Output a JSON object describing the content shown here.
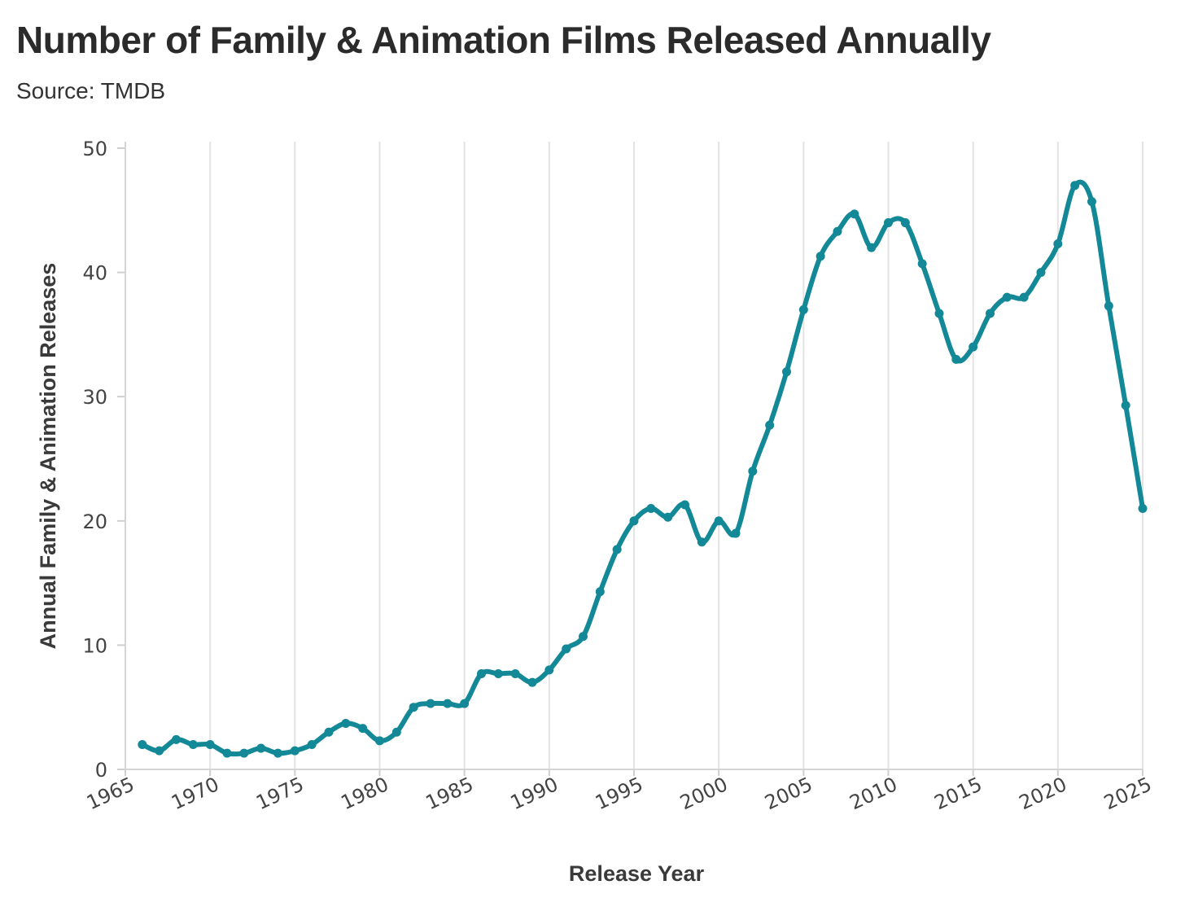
{
  "title": "Number of Family & Animation Films Released Annually",
  "subtitle": "Source: TMDB",
  "chart_data": {
    "type": "line",
    "title": "Number of Family & Animation Films Released Annually",
    "subtitle": "Source: TMDB",
    "xlabel": "Release Year",
    "ylabel": "Annual Family & Animation Releases",
    "xlim": [
      1965,
      2025
    ],
    "ylim": [
      0,
      50
    ],
    "xticks": [
      1965,
      1970,
      1975,
      1980,
      1985,
      1990,
      1995,
      2000,
      2005,
      2010,
      2015,
      2020,
      2025
    ],
    "yticks": [
      0,
      10,
      20,
      30,
      40,
      50
    ],
    "grid": "vertical",
    "line_color": "#138896",
    "x": [
      1966,
      1967,
      1968,
      1969,
      1970,
      1971,
      1972,
      1973,
      1974,
      1975,
      1976,
      1977,
      1978,
      1979,
      1980,
      1981,
      1982,
      1983,
      1984,
      1985,
      1986,
      1987,
      1988,
      1989,
      1990,
      1991,
      1992,
      1993,
      1994,
      1995,
      1996,
      1997,
      1998,
      1999,
      2000,
      2001,
      2002,
      2003,
      2004,
      2005,
      2006,
      2007,
      2008,
      2009,
      2010,
      2011,
      2012,
      2013,
      2014,
      2015,
      2016,
      2017,
      2018,
      2019,
      2020,
      2021,
      2022,
      2023,
      2024,
      2025
    ],
    "values": [
      2.0,
      1.5,
      2.4,
      2.0,
      2.0,
      1.3,
      1.3,
      1.7,
      1.3,
      1.5,
      2.0,
      3.0,
      3.7,
      3.3,
      2.3,
      3.0,
      5.0,
      5.3,
      5.3,
      5.3,
      7.7,
      7.7,
      7.7,
      7.0,
      8.0,
      9.7,
      10.7,
      14.3,
      17.7,
      20.0,
      21.0,
      20.3,
      21.3,
      18.3,
      20.0,
      19.0,
      24.0,
      27.7,
      32.0,
      37.0,
      41.3,
      43.3,
      44.7,
      42.0,
      44.0,
      44.0,
      40.7,
      36.7,
      33.0,
      34.0,
      36.7,
      38.0,
      38.0,
      40.0,
      42.3,
      47.0,
      45.7,
      37.3,
      29.3,
      21.0
    ]
  }
}
